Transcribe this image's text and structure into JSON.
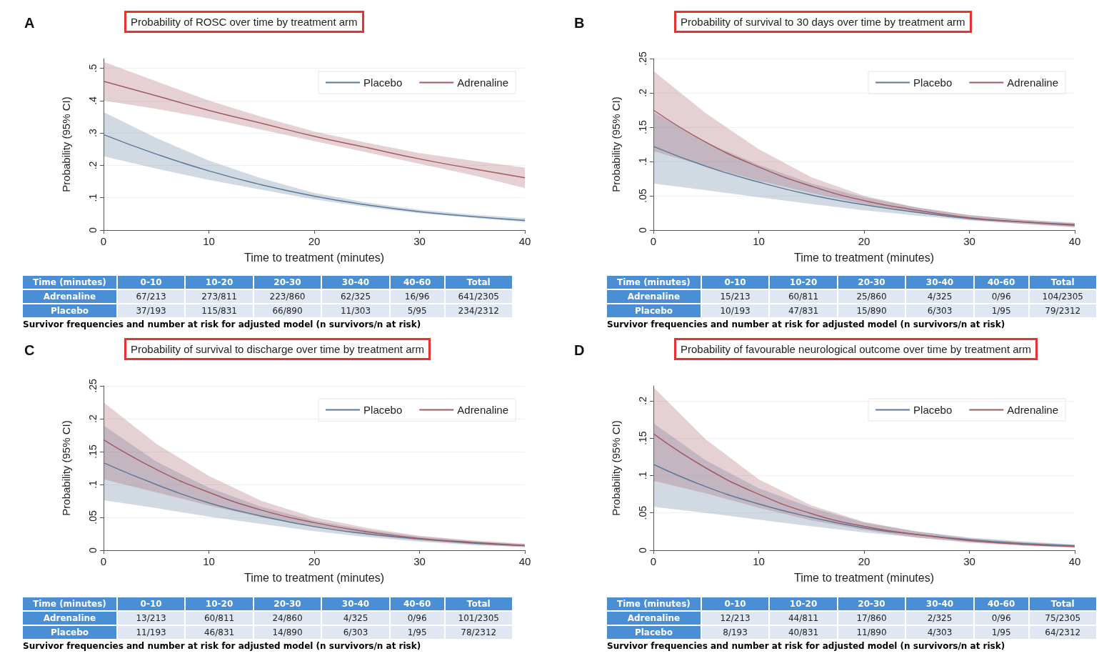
{
  "chart_data": [
    {
      "type": "line",
      "title": "Probability of ROSC over time by treatment arm",
      "xlabel": "Time to treatment (minutes)",
      "ylabel": "Probability (95% CI)",
      "annotations": [
        "A"
      ],
      "xlim": [
        0,
        40
      ],
      "xticks": [
        0,
        10,
        20,
        30,
        40
      ],
      "ylim": [
        0,
        0.53
      ],
      "yticks": [
        {
          "value": 0,
          "label": "0"
        },
        {
          "value": 0.1,
          "label": ".1"
        },
        {
          "value": 0.2,
          "label": ".2"
        },
        {
          "value": 0.3,
          "label": ".3"
        },
        {
          "value": 0.4,
          "label": ".4"
        },
        {
          "value": 0.5,
          "label": ".5"
        }
      ],
      "grid": "y",
      "legend": "top right",
      "x": [
        0,
        5,
        10,
        15,
        20,
        25,
        30,
        35,
        40
      ],
      "series": [
        {
          "name": "Placebo",
          "color": "#5b7a99",
          "values": [
            0.295,
            0.235,
            0.183,
            0.14,
            0.105,
            0.078,
            0.057,
            0.042,
            0.03
          ],
          "lower": [
            0.228,
            0.19,
            0.155,
            0.125,
            0.095,
            0.071,
            0.052,
            0.038,
            0.025
          ],
          "upper": [
            0.365,
            0.285,
            0.215,
            0.16,
            0.115,
            0.085,
            0.063,
            0.048,
            0.037
          ]
        },
        {
          "name": "Adrenaline",
          "color": "#a35a63",
          "values": [
            0.46,
            0.415,
            0.37,
            0.33,
            0.29,
            0.255,
            0.22,
            0.19,
            0.162
          ],
          "lower": [
            0.4,
            0.375,
            0.345,
            0.31,
            0.275,
            0.24,
            0.205,
            0.17,
            0.13
          ],
          "upper": [
            0.52,
            0.46,
            0.4,
            0.35,
            0.305,
            0.27,
            0.238,
            0.215,
            0.193
          ]
        }
      ]
    },
    {
      "type": "other",
      "xlabel": "Time (minutes)",
      "categories": [
        "0-10",
        "10-20",
        "20-30",
        "30-40",
        "40-60",
        "Total"
      ],
      "annotations": [
        "Adrenaline",
        "67/213",
        "273/811",
        "223/860",
        "62/325",
        "16/96",
        "641/2305",
        "Placebo",
        "37/193",
        "115/831",
        "66/890",
        "11/303",
        "5/95",
        "234/2312",
        "Survivor frequencies and number at risk for adjusted model (n survivors/n at risk)"
      ]
    },
    {
      "type": "line",
      "title": "Probability of survival to 30 days over time by treatment arm",
      "xlabel": "Time to treatment (minutes)",
      "ylabel": "Probability (95% CI)",
      "annotations": [
        "B"
      ],
      "xlim": [
        0,
        40
      ],
      "xticks": [
        0,
        10,
        20,
        30,
        40
      ],
      "ylim": [
        0,
        0.25
      ],
      "yticks": [
        {
          "value": 0,
          "label": "0"
        },
        {
          "value": 0.05,
          "label": ".05"
        },
        {
          "value": 0.1,
          "label": ".1"
        },
        {
          "value": 0.15,
          "label": ".15"
        },
        {
          "value": 0.2,
          "label": ".2"
        },
        {
          "value": 0.25,
          "label": ".25"
        }
      ],
      "grid": "y",
      "legend": "top right",
      "x": [
        0,
        5,
        10,
        15,
        20,
        25,
        30,
        35,
        40
      ],
      "series": [
        {
          "name": "Placebo",
          "color": "#5b7a99",
          "values": [
            0.122,
            0.093,
            0.07,
            0.051,
            0.037,
            0.026,
            0.017,
            0.012,
            0.008
          ],
          "lower": [
            0.068,
            0.058,
            0.048,
            0.038,
            0.029,
            0.021,
            0.014,
            0.009,
            0.005
          ],
          "upper": [
            0.172,
            0.128,
            0.095,
            0.068,
            0.048,
            0.033,
            0.022,
            0.015,
            0.011
          ]
        },
        {
          "name": "Adrenaline",
          "color": "#a35a63",
          "values": [
            0.175,
            0.128,
            0.092,
            0.064,
            0.043,
            0.029,
            0.018,
            0.012,
            0.007
          ],
          "lower": [
            0.115,
            0.093,
            0.072,
            0.054,
            0.038,
            0.025,
            0.015,
            0.009,
            0.004
          ],
          "upper": [
            0.232,
            0.17,
            0.118,
            0.077,
            0.05,
            0.033,
            0.022,
            0.015,
            0.01
          ]
        }
      ]
    },
    {
      "type": "other",
      "xlabel": "Time (minutes)",
      "categories": [
        "0-10",
        "10-20",
        "20-30",
        "30-40",
        "40-60",
        "Total"
      ],
      "annotations": [
        "Adrenaline",
        "15/213",
        "60/811",
        "25/860",
        "4/325",
        "0/96",
        "104/2305",
        "Placebo",
        "10/193",
        "47/831",
        "15/890",
        "6/303",
        "1/95",
        "79/2312",
        "Survivor frequencies and number at risk for adjusted model (n survivors/n at risk)"
      ]
    },
    {
      "type": "line",
      "title": "Probability of survival to discharge over time by treatment arm",
      "xlabel": "Time to treatment (minutes)",
      "ylabel": "Probability (95% CI)",
      "annotations": [
        "C"
      ],
      "xlim": [
        0,
        40
      ],
      "xticks": [
        0,
        10,
        20,
        30,
        40
      ],
      "ylim": [
        0,
        0.25
      ],
      "yticks": [
        {
          "value": 0,
          "label": "0"
        },
        {
          "value": 0.05,
          "label": ".05"
        },
        {
          "value": 0.1,
          "label": ".1"
        },
        {
          "value": 0.15,
          "label": ".15"
        },
        {
          "value": 0.2,
          "label": ".2"
        },
        {
          "value": 0.25,
          "label": ".25"
        }
      ],
      "grid": "y",
      "legend": "top right",
      "x": [
        0,
        5,
        10,
        15,
        20,
        25,
        30,
        35,
        40
      ],
      "series": [
        {
          "name": "Placebo",
          "color": "#5b7a99",
          "values": [
            0.133,
            0.1,
            0.072,
            0.052,
            0.036,
            0.025,
            0.017,
            0.011,
            0.007
          ],
          "lower": [
            0.076,
            0.064,
            0.051,
            0.04,
            0.029,
            0.02,
            0.013,
            0.008,
            0.005
          ],
          "upper": [
            0.19,
            0.135,
            0.095,
            0.066,
            0.045,
            0.031,
            0.021,
            0.014,
            0.009
          ]
        },
        {
          "name": "Adrenaline",
          "color": "#a35a63",
          "values": [
            0.168,
            0.123,
            0.088,
            0.061,
            0.042,
            0.028,
            0.018,
            0.012,
            0.007
          ],
          "lower": [
            0.108,
            0.088,
            0.068,
            0.05,
            0.035,
            0.023,
            0.015,
            0.009,
            0.005
          ],
          "upper": [
            0.225,
            0.162,
            0.113,
            0.075,
            0.05,
            0.034,
            0.022,
            0.015,
            0.01
          ]
        }
      ]
    },
    {
      "type": "other",
      "xlabel": "Time (minutes)",
      "categories": [
        "0-10",
        "10-20",
        "20-30",
        "30-40",
        "40-60",
        "Total"
      ],
      "annotations": [
        "Adrenaline",
        "13/213",
        "60/811",
        "24/860",
        "4/325",
        "0/96",
        "101/2305",
        "Placebo",
        "11/193",
        "46/831",
        "14/890",
        "6/303",
        "1/95",
        "78/2312",
        "Survivor frequencies and number at risk for adjusted model (n survivors/n at risk)"
      ]
    },
    {
      "type": "line",
      "title": "Probability of favourable neurological outcome over time by treatment arm",
      "xlabel": "Time to treatment (minutes)",
      "ylabel": "Probability (95% CI)",
      "annotations": [
        "D"
      ],
      "xlim": [
        0,
        40
      ],
      "xticks": [
        0,
        10,
        20,
        30,
        40
      ],
      "ylim": [
        0,
        0.22
      ],
      "yticks": [
        {
          "value": 0,
          "label": "0"
        },
        {
          "value": 0.05,
          "label": ".05"
        },
        {
          "value": 0.1,
          "label": ".1"
        },
        {
          "value": 0.15,
          "label": ".15"
        },
        {
          "value": 0.2,
          "label": ".2"
        }
      ],
      "grid": "y",
      "legend": "top right",
      "x": [
        0,
        5,
        10,
        15,
        20,
        25,
        30,
        35,
        40
      ],
      "series": [
        {
          "name": "Placebo",
          "color": "#5b7a99",
          "values": [
            0.115,
            0.085,
            0.062,
            0.044,
            0.03,
            0.021,
            0.014,
            0.009,
            0.006
          ],
          "lower": [
            0.058,
            0.05,
            0.041,
            0.032,
            0.024,
            0.017,
            0.011,
            0.007,
            0.004
          ],
          "upper": [
            0.17,
            0.12,
            0.083,
            0.057,
            0.037,
            0.025,
            0.017,
            0.012,
            0.008
          ]
        },
        {
          "name": "Adrenaline",
          "color": "#a35a63",
          "values": [
            0.156,
            0.11,
            0.075,
            0.049,
            0.032,
            0.021,
            0.013,
            0.008,
            0.005
          ],
          "lower": [
            0.093,
            0.076,
            0.057,
            0.04,
            0.027,
            0.017,
            0.01,
            0.006,
            0.003
          ],
          "upper": [
            0.218,
            0.148,
            0.095,
            0.06,
            0.038,
            0.025,
            0.016,
            0.011,
            0.007
          ]
        }
      ]
    },
    {
      "type": "other",
      "xlabel": "Time (minutes)",
      "categories": [
        "0-10",
        "10-20",
        "20-30",
        "30-40",
        "40-60",
        "Total"
      ],
      "annotations": [
        "Adrenaline",
        "12/213",
        "44/811",
        "17/860",
        "2/325",
        "0/96",
        "75/2305",
        "Placebo",
        "8/193",
        "40/831",
        "11/890",
        "4/303",
        "1/95",
        "64/2312",
        "Survivor frequencies and number at risk for adjusted model (n survivors/n at risk)"
      ]
    }
  ]
}
